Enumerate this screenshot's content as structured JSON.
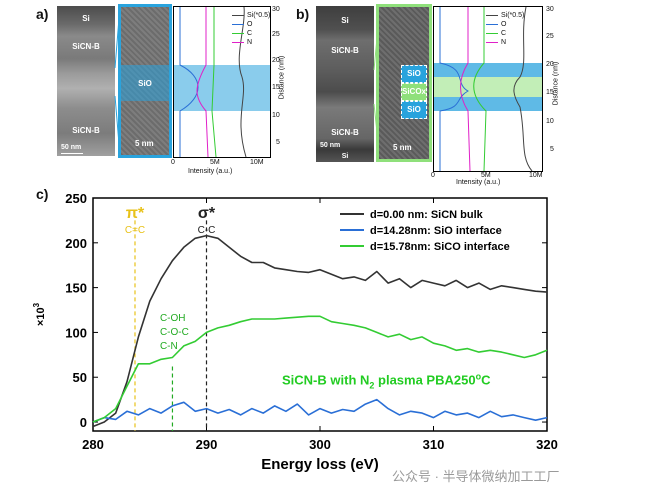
{
  "panel_a": {
    "label": "a)",
    "tem": {
      "layers": [
        "Si",
        "SiCN-B",
        "SiCN-B"
      ],
      "scale": "50 nm",
      "substrate": "Si",
      "zoom_label": "SiO",
      "zoom_scale": "5 nm"
    },
    "accent": "#29a3dd",
    "legend": [
      "Si(*0.5)",
      "O",
      "C",
      "N"
    ],
    "x_ticks": [
      "0",
      "5M",
      "10M"
    ],
    "x_title": "Intensity (a.u.)"
  },
  "panel_b": {
    "label": "b)",
    "tem": {
      "layers": [
        "Si",
        "SiCN-B",
        "SiCN-B",
        "Si"
      ],
      "scale": "50 nm",
      "zoom_labels": [
        "SiO",
        "SiCOx",
        "SiO"
      ],
      "zoom_scale": "5 nm"
    },
    "accent": "#8fe07b",
    "legend": [
      "Si(*0.5)",
      "O",
      "C",
      "N"
    ],
    "x_ticks": [
      "0",
      "5M",
      "10M"
    ],
    "x_title": "Intensity (a.u.)"
  },
  "depth_axis": {
    "title": "Distance (nm)",
    "ticks": [
      "30",
      "25",
      "20",
      "15",
      "10",
      "5"
    ]
  },
  "panel_c": {
    "label": "c)"
  },
  "profile_colors": {
    "Si": "#444444",
    "O": "#2a6fd6",
    "C": "#33cc33",
    "N": "#e020c8"
  },
  "chart_data": {
    "type": "line",
    "title": "SiCN-B with N2 plasma PBA250°C",
    "title_parts": {
      "a": "SiCN-B with N",
      "sub": "2",
      "b": " plasma PBA250",
      "sup": "o",
      "c": "C"
    },
    "xlabel": "Energy loss (eV)",
    "ylabel": "×10³",
    "ylabel_parts": {
      "base": "×10",
      "sup": "3"
    },
    "xlim": [
      280,
      320
    ],
    "ylim": [
      -10,
      250
    ],
    "xticks": [
      280,
      290,
      300,
      310,
      320
    ],
    "yticks": [
      0,
      50,
      100,
      150,
      200,
      250
    ],
    "series": [
      {
        "name": "d=0.00 nm: SiCN bulk",
        "color": "#333333",
        "x": [
          280,
          281,
          282,
          283,
          284,
          285,
          286,
          287,
          288,
          289,
          290,
          291,
          292,
          293,
          294,
          295,
          296,
          297,
          298,
          299,
          300,
          301,
          302,
          303,
          304,
          305,
          306,
          307,
          308,
          309,
          310,
          311,
          312,
          313,
          314,
          315,
          316,
          317,
          318,
          319,
          320
        ],
        "y": [
          -5,
          0,
          10,
          45,
          95,
          135,
          160,
          180,
          195,
          205,
          208,
          205,
          195,
          185,
          178,
          178,
          172,
          170,
          168,
          167,
          170,
          165,
          160,
          162,
          158,
          168,
          155,
          160,
          150,
          158,
          155,
          152,
          158,
          150,
          155,
          148,
          152,
          150,
          148,
          146,
          145
        ]
      },
      {
        "name": "d=14.28nm: SiO interface",
        "color": "#2a6fd6",
        "x": [
          280,
          281,
          282,
          283,
          284,
          285,
          286,
          287,
          288,
          289,
          290,
          291,
          292,
          293,
          294,
          295,
          296,
          297,
          298,
          299,
          300,
          301,
          302,
          303,
          304,
          305,
          306,
          307,
          308,
          309,
          310,
          311,
          312,
          313,
          314,
          315,
          316,
          317,
          318,
          319,
          320
        ],
        "y": [
          0,
          5,
          3,
          12,
          8,
          15,
          10,
          18,
          22,
          12,
          15,
          10,
          14,
          8,
          15,
          10,
          18,
          12,
          20,
          8,
          15,
          10,
          14,
          12,
          20,
          25,
          15,
          8,
          12,
          10,
          5,
          12,
          8,
          10,
          5,
          12,
          6,
          8,
          5,
          2,
          5
        ]
      },
      {
        "name": "d=15.78nm: SiCO interface",
        "color": "#33cc33",
        "x": [
          280,
          281,
          282,
          283,
          284,
          285,
          286,
          287,
          288,
          289,
          290,
          291,
          292,
          293,
          294,
          295,
          296,
          297,
          298,
          299,
          300,
          301,
          302,
          303,
          304,
          305,
          306,
          307,
          308,
          309,
          310,
          311,
          312,
          313,
          314,
          315,
          316,
          317,
          318,
          319,
          320
        ],
        "y": [
          0,
          5,
          15,
          40,
          65,
          65,
          70,
          72,
          85,
          90,
          100,
          105,
          108,
          112,
          115,
          115,
          115,
          116,
          117,
          118,
          118,
          112,
          110,
          108,
          105,
          100,
          95,
          98,
          92,
          95,
          88,
          85,
          80,
          82,
          78,
          80,
          78,
          75,
          72,
          75,
          80
        ]
      }
    ],
    "annotations": [
      {
        "symbol": "π*",
        "sub": "C=C",
        "x": 283.7,
        "color": "#e8c21a"
      },
      {
        "symbol": "σ*",
        "sub": "C-C",
        "x": 290.0,
        "color": "#222222"
      },
      {
        "lines": [
          "C-OH",
          "C-O-C",
          "C-N"
        ],
        "x": 287.0,
        "color": "#22aa22"
      }
    ]
  },
  "watermark": "公众号 · 半导体微纳加工工厂"
}
